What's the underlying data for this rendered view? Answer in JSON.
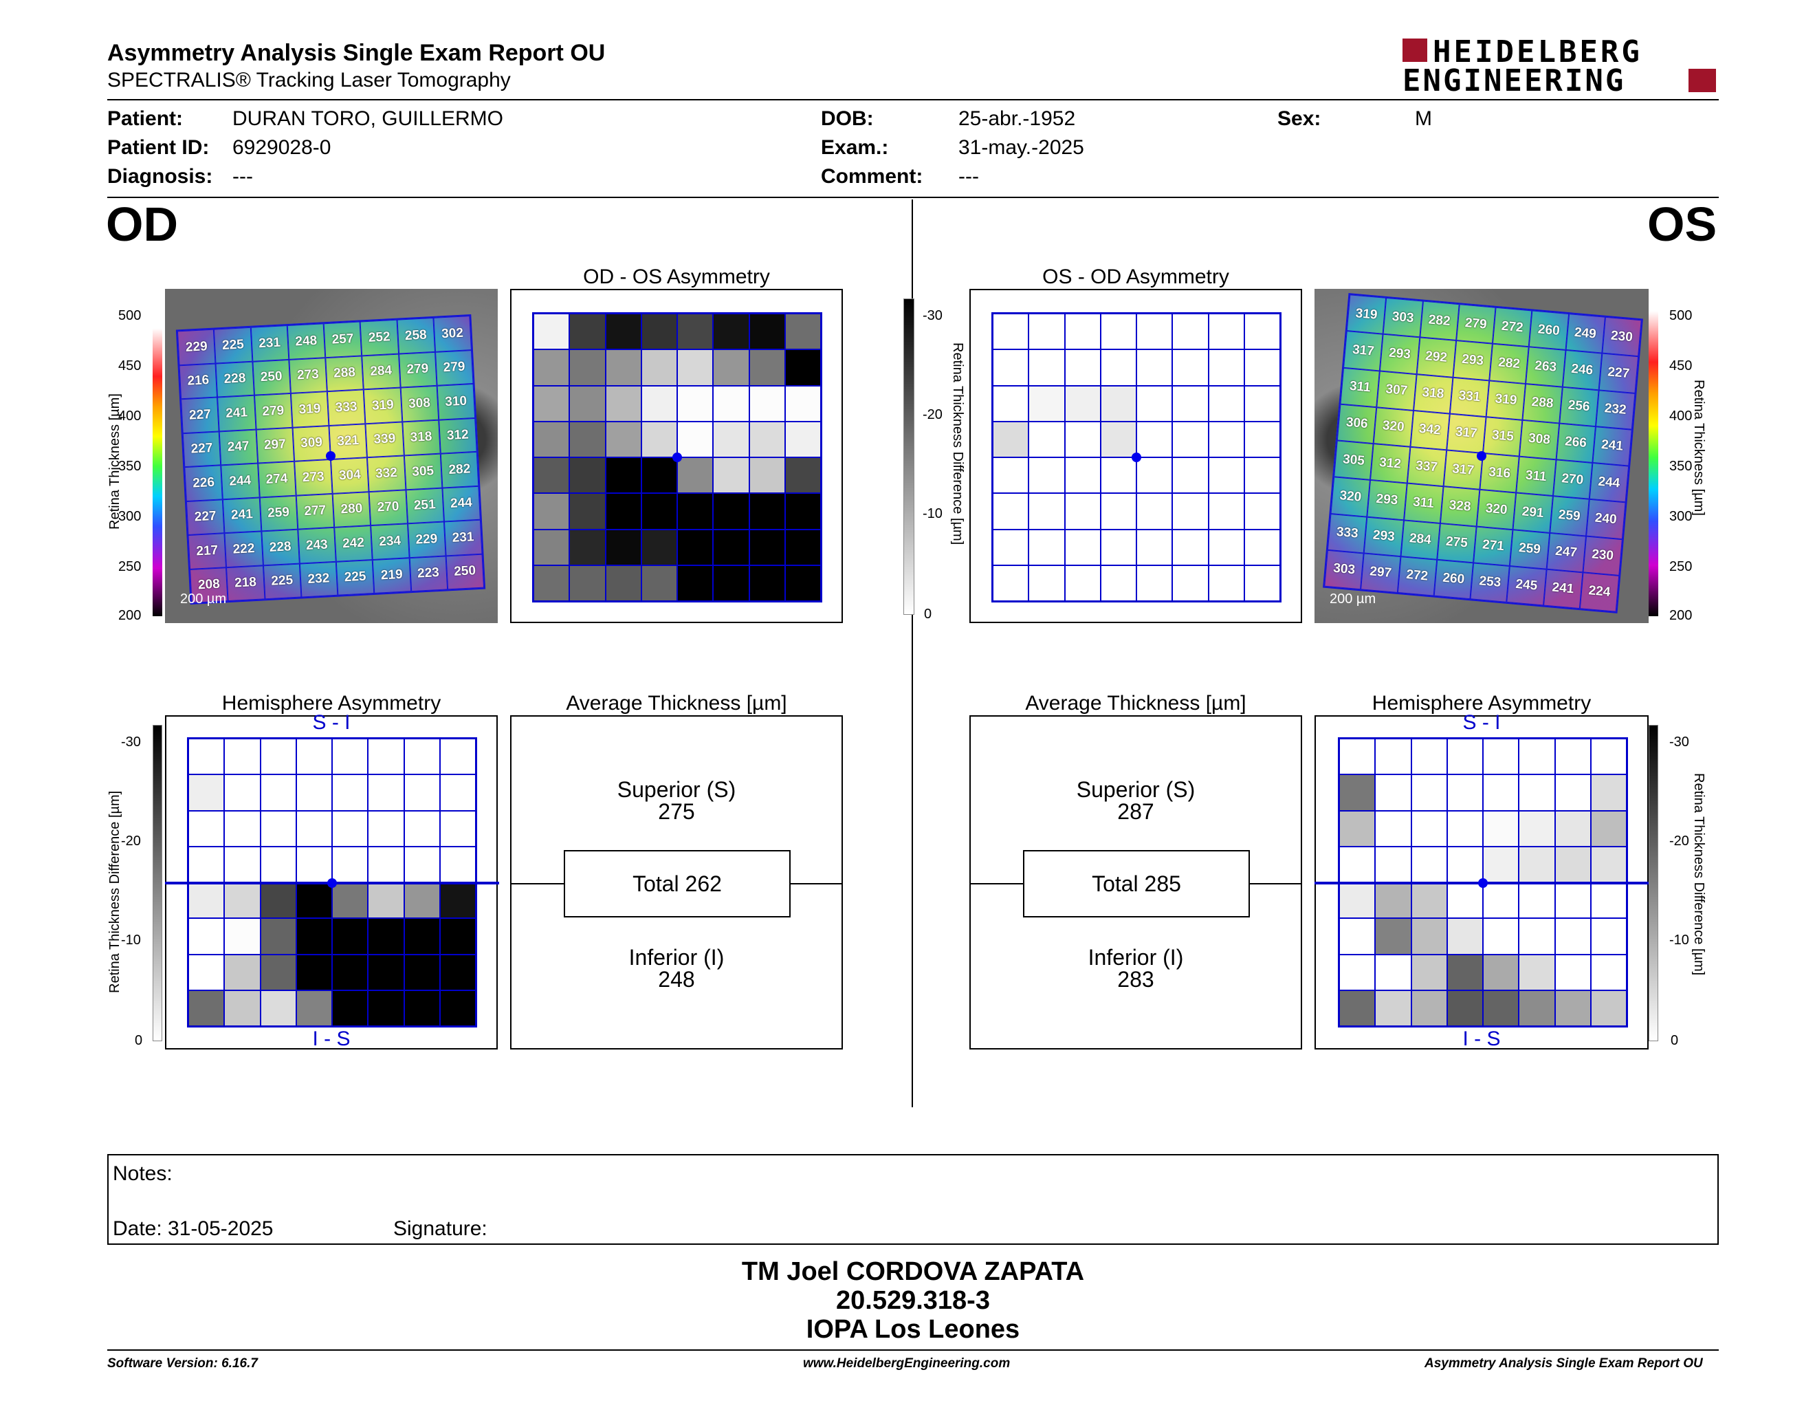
{
  "header": {
    "title": "Asymmetry Analysis Single Exam Report OU",
    "subtitle": "SPECTRALIS® Tracking Laser Tomography",
    "logo_line1": "HEIDELBERG",
    "logo_line2": "ENGINEERING"
  },
  "patient": {
    "patient_label": "Patient:",
    "patient_value": "DURAN TORO, GUILLERMO",
    "id_label": "Patient ID:",
    "id_value": "6929028-0",
    "diagnosis_label": "Diagnosis:",
    "diagnosis_value": "---",
    "dob_label": "DOB:",
    "dob_value": "25-abr.-1952",
    "exam_label": "Exam.:",
    "exam_value": "31-may.-2025",
    "comment_label": "Comment:",
    "comment_value": "---",
    "sex_label": "Sex:",
    "sex_value": "M"
  },
  "od": {
    "eye_label": "OD",
    "asym_title": "OD - OS Asymmetry",
    "hemi_title": "Hemisphere Asymmetry",
    "avg_title": "Average Thickness [µm]",
    "superior_label": "Superior (S)",
    "superior_value": "275",
    "total_label": "Total 262",
    "inferior_label": "Inferior (I)",
    "inferior_value": "248",
    "scale_label": "200 µm",
    "thickness": [
      [
        "229",
        "225",
        "231",
        "248",
        "257",
        "252",
        "258",
        "302"
      ],
      [
        "216",
        "228",
        "250",
        "273",
        "288",
        "284",
        "279",
        "279"
      ],
      [
        "227",
        "241",
        "279",
        "319",
        "333",
        "319",
        "308",
        "310"
      ],
      [
        "227",
        "247",
        "297",
        "309",
        "321",
        "339",
        "318",
        "312"
      ],
      [
        "226",
        "244",
        "274",
        "273",
        "304",
        "332",
        "305",
        "282"
      ],
      [
        "227",
        "241",
        "259",
        "277",
        "280",
        "270",
        "251",
        "244"
      ],
      [
        "217",
        "222",
        "228",
        "243",
        "242",
        "234",
        "229",
        "231"
      ],
      [
        "208",
        "218",
        "225",
        "232",
        "225",
        "219",
        "223",
        "250"
      ]
    ],
    "asym_gray": [
      [
        242,
        60,
        20,
        50,
        70,
        20,
        10,
        110
      ],
      [
        150,
        120,
        150,
        200,
        215,
        150,
        120,
        0
      ],
      [
        165,
        140,
        185,
        240,
        252,
        252,
        252,
        252
      ],
      [
        140,
        110,
        160,
        215,
        252,
        230,
        220,
        240
      ],
      [
        90,
        60,
        0,
        0,
        140,
        215,
        200,
        70
      ],
      [
        140,
        60,
        0,
        0,
        0,
        0,
        0,
        0
      ],
      [
        130,
        40,
        10,
        30,
        0,
        0,
        0,
        0
      ],
      [
        110,
        100,
        90,
        100,
        0,
        0,
        0,
        0
      ]
    ],
    "hemi_gray": [
      [
        255,
        255,
        255,
        255,
        255,
        255,
        255,
        255
      ],
      [
        238,
        255,
        255,
        255,
        255,
        255,
        255,
        255
      ],
      [
        255,
        255,
        255,
        255,
        255,
        255,
        255,
        255
      ],
      [
        255,
        255,
        255,
        255,
        255,
        255,
        255,
        255
      ],
      [
        235,
        215,
        70,
        0,
        120,
        200,
        150,
        20
      ],
      [
        255,
        252,
        100,
        0,
        0,
        0,
        0,
        0
      ],
      [
        255,
        200,
        100,
        0,
        0,
        0,
        0,
        0
      ],
      [
        110,
        200,
        220,
        130,
        0,
        0,
        0,
        0
      ]
    ]
  },
  "os": {
    "eye_label": "OS",
    "asym_title": "OS - OD Asymmetry",
    "hemi_title": "Hemisphere Asymmetry",
    "avg_title": "Average Thickness [µm]",
    "superior_label": "Superior (S)",
    "superior_value": "287",
    "total_label": "Total 285",
    "inferior_label": "Inferior (I)",
    "inferior_value": "283",
    "scale_label": "200 µm",
    "thickness": [
      [
        "319",
        "303",
        "282",
        "279",
        "272",
        "260",
        "249",
        "230"
      ],
      [
        "317",
        "293",
        "292",
        "293",
        "282",
        "263",
        "246",
        "227"
      ],
      [
        "311",
        "307",
        "318",
        "331",
        "319",
        "288",
        "256",
        "232"
      ],
      [
        "306",
        "320",
        "342",
        "317",
        "315",
        "308",
        "266",
        "241"
      ],
      [
        "305",
        "312",
        "337",
        "317",
        "316",
        "311",
        "270",
        "244"
      ],
      [
        "320",
        "293",
        "311",
        "328",
        "320",
        "291",
        "259",
        "240"
      ],
      [
        "333",
        "293",
        "284",
        "275",
        "271",
        "259",
        "247",
        "230"
      ],
      [
        "303",
        "297",
        "272",
        "260",
        "253",
        "245",
        "241",
        "224"
      ]
    ],
    "asym_gray": [
      [
        255,
        255,
        255,
        255,
        255,
        255,
        255,
        255
      ],
      [
        255,
        255,
        255,
        255,
        255,
        255,
        255,
        255
      ],
      [
        255,
        245,
        240,
        235,
        255,
        255,
        255,
        255
      ],
      [
        220,
        255,
        255,
        230,
        255,
        255,
        255,
        255
      ],
      [
        255,
        255,
        255,
        255,
        255,
        255,
        255,
        255
      ],
      [
        255,
        255,
        255,
        255,
        255,
        255,
        255,
        255
      ],
      [
        255,
        255,
        255,
        255,
        255,
        255,
        255,
        255
      ],
      [
        255,
        255,
        255,
        255,
        255,
        255,
        255,
        255
      ]
    ],
    "hemi_gray": [
      [
        255,
        255,
        255,
        255,
        255,
        255,
        255,
        255
      ],
      [
        120,
        255,
        255,
        255,
        255,
        255,
        255,
        220
      ],
      [
        190,
        255,
        255,
        255,
        250,
        240,
        230,
        190
      ],
      [
        255,
        255,
        255,
        255,
        240,
        230,
        220,
        225
      ],
      [
        235,
        180,
        200,
        255,
        255,
        255,
        255,
        255
      ],
      [
        255,
        130,
        190,
        230,
        255,
        255,
        255,
        255
      ],
      [
        255,
        255,
        200,
        100,
        170,
        220,
        255,
        255
      ],
      [
        110,
        210,
        180,
        90,
        100,
        140,
        170,
        200
      ]
    ]
  },
  "scales": {
    "thickness_label": "Retina  Thickness [µm]",
    "thickness_ticks": [
      "500",
      "450",
      "400",
      "350",
      "300",
      "250",
      "200"
    ],
    "diff_label": "Retina Thickness Difference [µm]",
    "diff_ticks": [
      "-30",
      "-20",
      "-10",
      "0"
    ],
    "s_i": "S - I",
    "i_s": "I - S"
  },
  "notes": {
    "notes_label": "Notes:",
    "date_label": "Date: 31-05-2025",
    "signature_label": "Signature:"
  },
  "signature_block": {
    "name": "TM Joel CORDOVA ZAPATA",
    "id": "20.529.318-3",
    "institution": "IOPA Los Leones"
  },
  "footer": {
    "software": "Software Version: 6.16.7",
    "website": "www.HeidelbergEngineering.com",
    "report": "Asymmetry Analysis Single Exam Report OU"
  },
  "colors": {
    "grid_blue": "#0000cc",
    "logo_red": "#a0142a"
  }
}
